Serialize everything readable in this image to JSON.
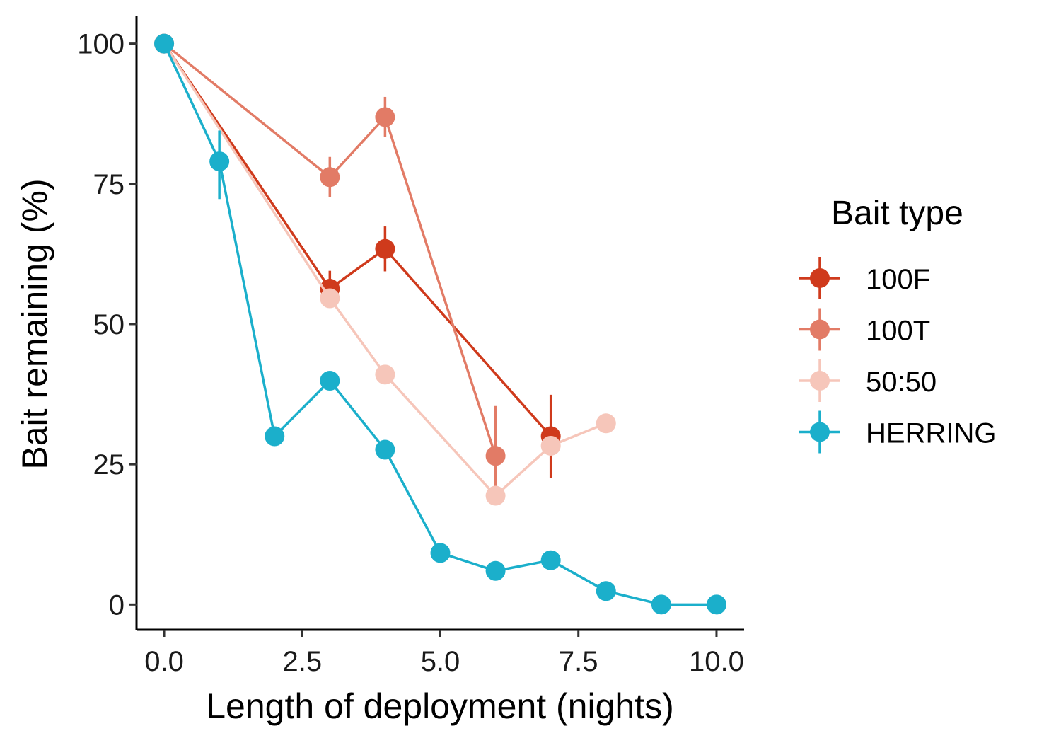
{
  "chart_data": {
    "type": "line",
    "title": "",
    "xlabel": "Length of deployment (nights)",
    "ylabel": "Bait remaining (%)",
    "xlim": [
      -0.5,
      10.5
    ],
    "ylim": [
      -4.5,
      105
    ],
    "x_ticks": [
      0.0,
      2.5,
      5.0,
      7.5,
      10.0
    ],
    "x_tick_labels": [
      "0.0",
      "2.5",
      "5.0",
      "7.5",
      "10.0"
    ],
    "y_ticks": [
      0,
      25,
      50,
      75,
      100
    ],
    "y_tick_labels": [
      "0",
      "25",
      "50",
      "75",
      "100"
    ],
    "grid": false,
    "legend": {
      "title": "Bait type",
      "position": "right"
    },
    "series": [
      {
        "name": "100F",
        "color": "#CF3A1C",
        "x": [
          0,
          3,
          4,
          7
        ],
        "y": [
          100,
          56.3,
          63.4,
          30.0
        ],
        "err_low": [
          100,
          53.2,
          59.4,
          22.6
        ],
        "err_high": [
          100,
          59.5,
          67.4,
          37.4
        ]
      },
      {
        "name": "100T",
        "color": "#E27B66",
        "x": [
          0,
          3,
          4,
          6
        ],
        "y": [
          100,
          76.2,
          86.9,
          26.5
        ],
        "err_low": [
          100,
          72.7,
          83.3,
          19.4
        ],
        "err_high": [
          100,
          79.8,
          90.5,
          35.4
        ]
      },
      {
        "name": "50:50",
        "color": "#F6C6BA",
        "x": [
          0,
          3,
          4,
          6,
          7,
          8
        ],
        "y": [
          100,
          54.6,
          41.0,
          19.4,
          28.3,
          32.3
        ],
        "err_low": [
          100,
          54.6,
          41.0,
          19.4,
          28.3,
          32.3
        ],
        "err_high": [
          100,
          54.6,
          41.0,
          19.4,
          28.3,
          32.3
        ]
      },
      {
        "name": "HERRING",
        "color": "#1BAFCB",
        "x": [
          0,
          1,
          2,
          3,
          4,
          5,
          6,
          7,
          8,
          9,
          10
        ],
        "y": [
          100,
          79.0,
          30.0,
          39.9,
          27.6,
          9.2,
          6.0,
          7.9,
          2.4,
          0.0,
          0.0
        ],
        "err_low": [
          100,
          72.3,
          30.0,
          39.9,
          27.6,
          9.2,
          6.0,
          7.9,
          2.4,
          0.0,
          0.0
        ],
        "err_high": [
          100,
          84.5,
          30.0,
          39.9,
          27.6,
          9.2,
          6.0,
          7.9,
          2.4,
          0.0,
          0.0
        ]
      }
    ]
  }
}
